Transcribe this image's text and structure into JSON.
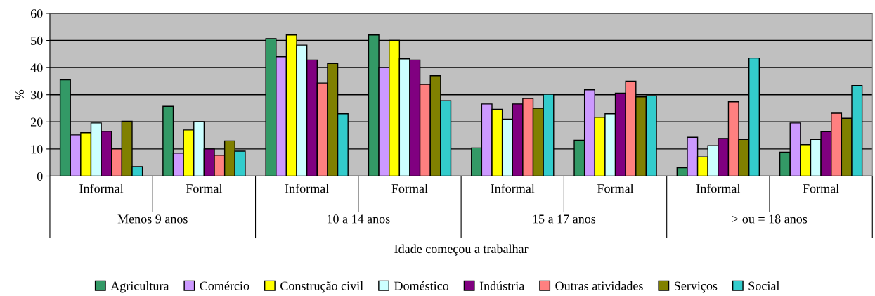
{
  "chart_data": {
    "type": "bar",
    "ylabel": "%",
    "xlabel": "Idade começou a trabalhar",
    "categories": [
      "Informal",
      "Formal",
      "Informal",
      "Formal",
      "Informal",
      "Formal",
      "Informal",
      "Formal"
    ],
    "annotations": [
      "Menos 9 anos",
      "10 a 14 anos",
      "15 a 17 anos",
      "> ou = 18 anos"
    ],
    "series": [
      {
        "name": "Agricultura",
        "color": "#339966",
        "values": [
          35.5,
          25.7,
          50.7,
          52,
          10.4,
          13.2,
          3.1,
          8.8
        ]
      },
      {
        "name": "Comércio",
        "color": "#cc99ff",
        "values": [
          15.2,
          8.5,
          44,
          40,
          26.6,
          31.8,
          14.3,
          19.6
        ]
      },
      {
        "name": "Construção civil",
        "color": "#ffff00",
        "values": [
          16,
          17,
          52,
          50,
          24.6,
          21.7,
          7.1,
          11.6
        ]
      },
      {
        "name": "Doméstico",
        "color": "#ccffff",
        "values": [
          19.6,
          20.1,
          48.3,
          43.2,
          21,
          23,
          11.2,
          13.5
        ]
      },
      {
        "name": "Indústria",
        "color": "#800080",
        "values": [
          16.5,
          10,
          42.8,
          42.8,
          26.6,
          30.6,
          13.9,
          16.4
        ]
      },
      {
        "name": "Outras atividades",
        "color": "#ff8080",
        "values": [
          10,
          7.7,
          34.3,
          33.8,
          28.6,
          35,
          27.4,
          23.2
        ]
      },
      {
        "name": "Serviços",
        "color": "#808000",
        "values": [
          20.2,
          13,
          41.5,
          37,
          25,
          29.2,
          13.5,
          21.3
        ]
      },
      {
        "name": "Social",
        "color": "#33cccc",
        "values": [
          3.5,
          9.2,
          23,
          27.8,
          30.2,
          29.6,
          43.5,
          33.4
        ]
      }
    ],
    "ylim": [
      0,
      60
    ],
    "yticks": [
      0,
      10,
      20,
      30,
      40,
      50,
      60
    ],
    "grid": "y",
    "legend": "bottom"
  }
}
